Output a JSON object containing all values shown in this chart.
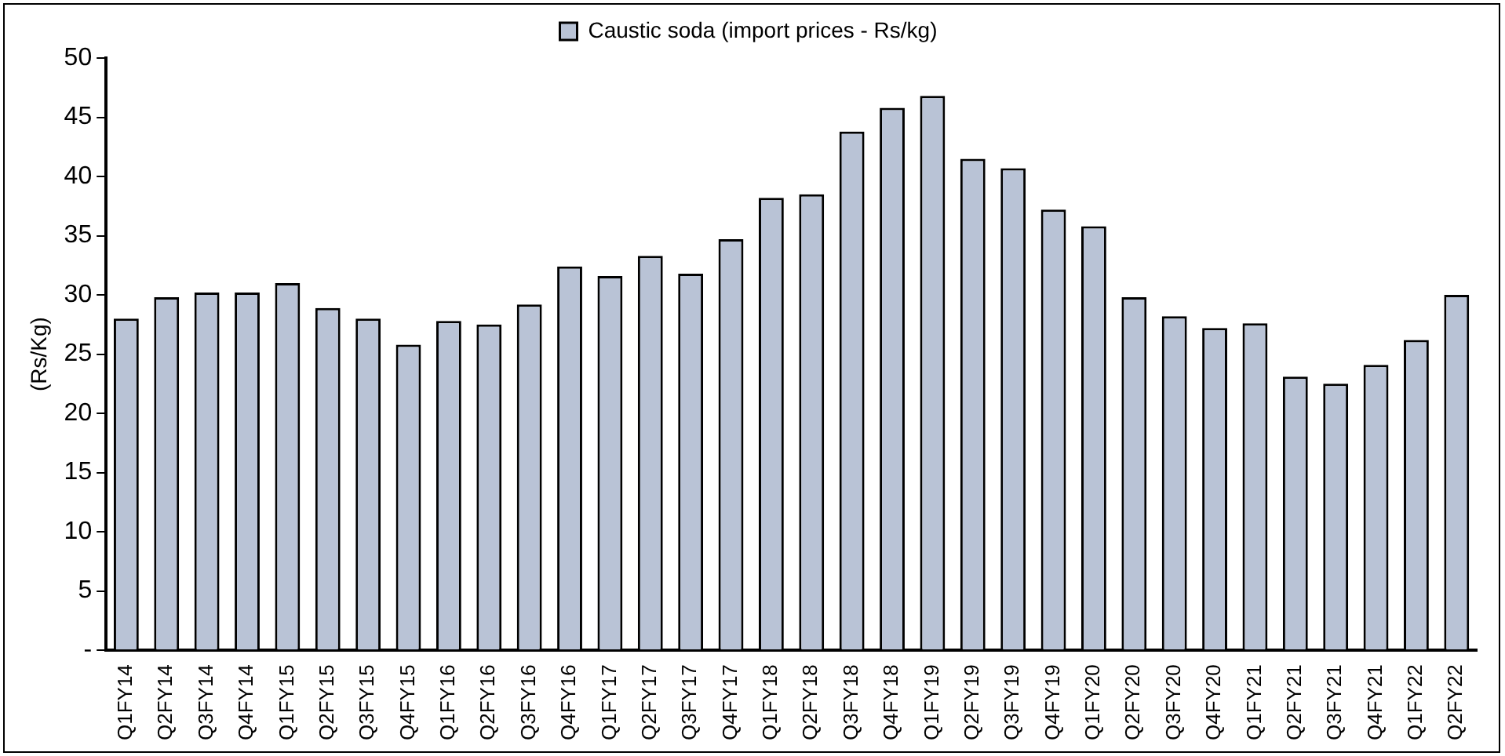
{
  "chart_data": {
    "type": "bar",
    "ylabel": "(Rs/Kg)",
    "categories": [
      "Q1FY14",
      "Q2FY14",
      "Q3FY14",
      "Q4FY14",
      "Q1FY15",
      "Q2FY15",
      "Q3FY15",
      "Q4FY15",
      "Q1FY16",
      "Q2FY16",
      "Q3FY16",
      "Q4FY16",
      "Q1FY17",
      "Q2FY17",
      "Q3FY17",
      "Q4FY17",
      "Q1FY18",
      "Q2FY18",
      "Q3FY18",
      "Q4FY18",
      "Q1FY19",
      "Q2FY19",
      "Q3FY19",
      "Q4FY19",
      "Q1FY20",
      "Q2FY20",
      "Q3FY20",
      "Q4FY20",
      "Q1FY21",
      "Q2FY21",
      "Q3FY21",
      "Q4FY21",
      "Q1FY22",
      "Q2FY22"
    ],
    "series": [
      {
        "name": "Caustic soda (import prices - Rs/kg)",
        "color": "#b9c3d6",
        "values": [
          28.0,
          29.8,
          30.2,
          30.2,
          31.0,
          28.9,
          28.0,
          25.8,
          27.8,
          27.5,
          29.2,
          32.4,
          31.6,
          33.3,
          31.8,
          34.7,
          38.2,
          38.5,
          43.8,
          45.8,
          46.8,
          41.5,
          40.7,
          37.2,
          35.8,
          29.8,
          28.2,
          27.2,
          27.6,
          23.1,
          22.5,
          24.1,
          26.2,
          30.0
        ]
      }
    ],
    "ylim": [
      0,
      50
    ],
    "yticks": [
      {
        "value": 0,
        "label": "-"
      },
      5,
      10,
      15,
      20,
      25,
      30,
      35,
      40,
      45,
      50
    ],
    "grid": false,
    "legend": "top"
  }
}
